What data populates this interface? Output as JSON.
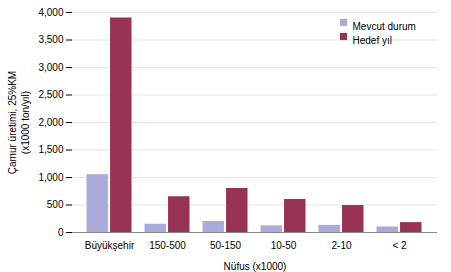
{
  "chart_data": {
    "type": "bar",
    "categories": [
      "Büyükşehir",
      "150-500",
      "50-150",
      "10-50",
      "2-10",
      "< 2"
    ],
    "series": [
      {
        "name": "Mevcut durum",
        "color": "#aaaadd",
        "values": [
          1050,
          150,
          200,
          120,
          130,
          100
        ]
      },
      {
        "name": "Hedef yıl",
        "color": "#993355",
        "values": [
          3900,
          650,
          800,
          600,
          490,
          180
        ]
      }
    ],
    "xlabel": "Nüfus (x1000)",
    "ylabel": "Çamur üretimi, 25%KM\n(x1000 ton/yıl)",
    "ylim": [
      0,
      4000
    ],
    "yticks": [
      0,
      500,
      {
        "value": 1000,
        "label": "1,000"
      },
      {
        "value": 1500,
        "label": "1,500"
      },
      {
        "value": 2000,
        "label": "2,000"
      },
      {
        "value": 2500,
        "label": "2,500"
      },
      {
        "value": 3000,
        "label": "3,000"
      },
      {
        "value": 3500,
        "label": "3,500"
      },
      {
        "value": 4000,
        "label": "4,000"
      }
    ],
    "grid": true,
    "legend": "upper right"
  }
}
